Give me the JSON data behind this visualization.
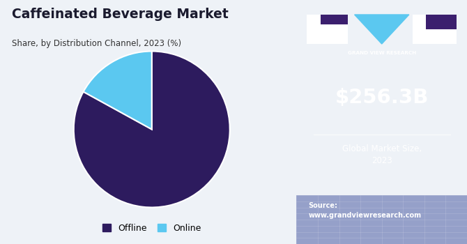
{
  "title": "Caffeinated Beverage Market",
  "subtitle": "Share, by Distribution Channel, 2023 (%)",
  "pie_values": [
    83,
    17
  ],
  "pie_labels": [
    "Offline",
    "Online"
  ],
  "pie_colors": [
    "#2d1b5e",
    "#5bc8f0"
  ],
  "legend_labels": [
    "Offline",
    "Online"
  ],
  "left_bg": "#eef2f7",
  "right_bg": "#3b1f6e",
  "right_bg_bottom": "#5a6aab",
  "market_size": "$256.3B",
  "market_size_label": "Global Market Size,\n2023",
  "source_label": "Source:\nwww.grandviewresearch.com",
  "title_color": "#1a1a2e",
  "subtitle_color": "#333333",
  "gvr_text": "GRAND VIEW RESEARCH"
}
